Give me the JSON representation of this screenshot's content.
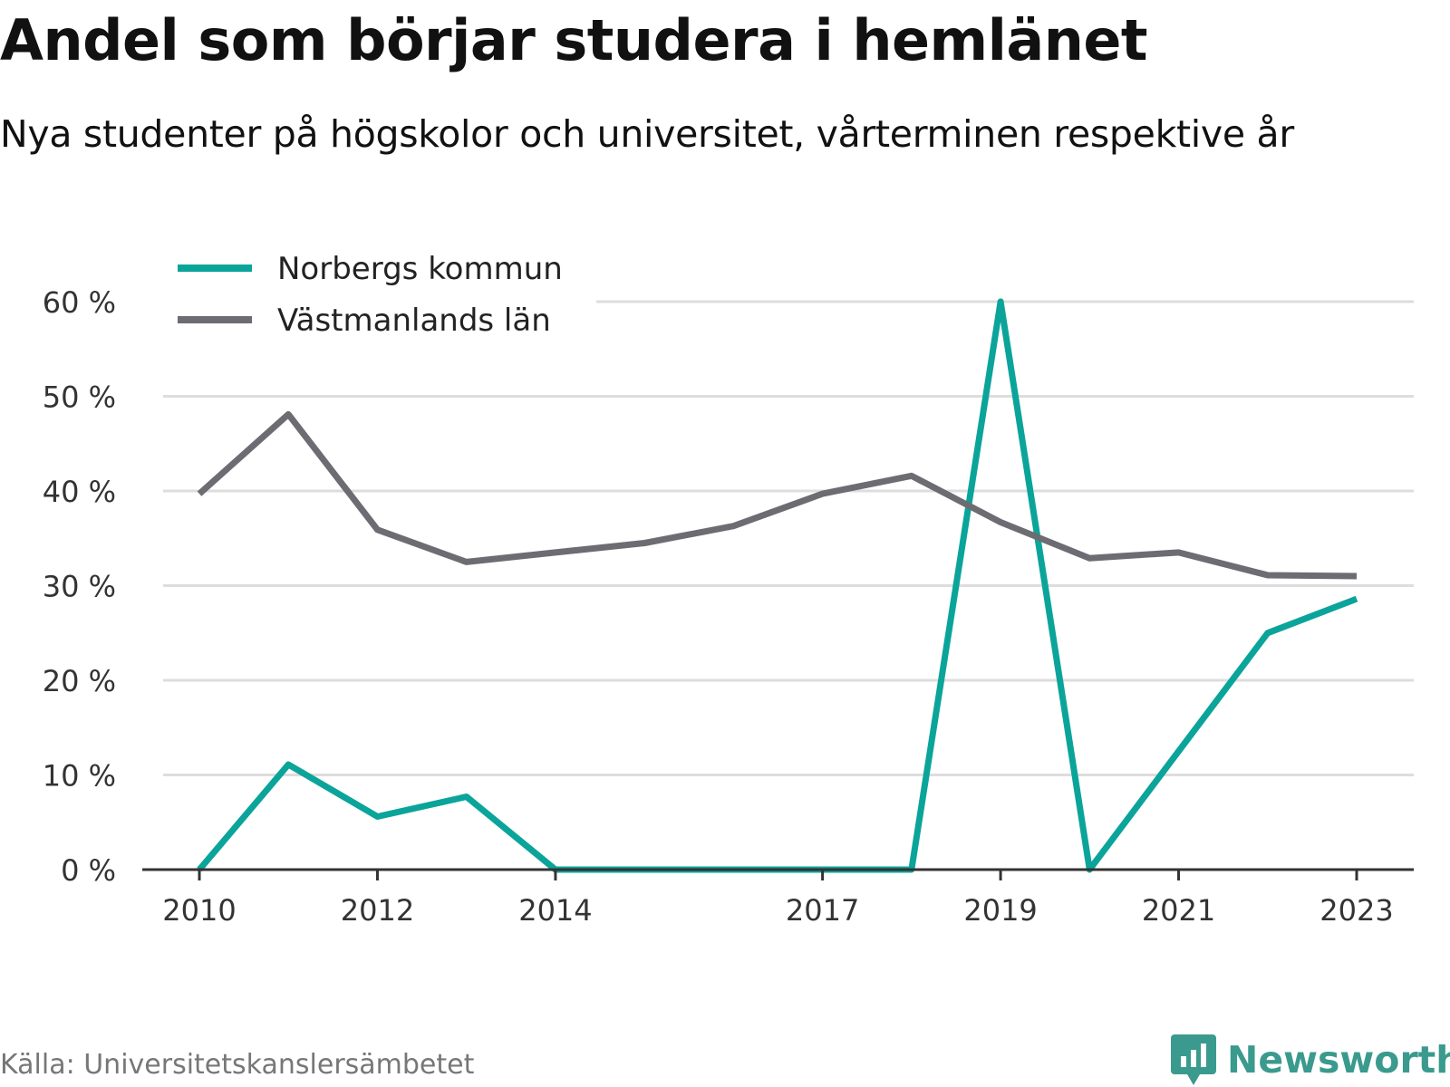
{
  "title": "Andel som börjar studera i hemlänet",
  "subtitle": "Nya studenter på högskolor och universitet, vårterminen respektive år",
  "source": "Källa: Universitetskanslersämbetet",
  "brand": "Newsworthy",
  "colors": {
    "norberg": "#0ba49a",
    "vastmanland": "#6d6c72",
    "grid": "#dddddd",
    "axis": "#333333",
    "brand": "#3a9a8e"
  },
  "chart_data": {
    "type": "line",
    "x": [
      2010,
      2011,
      2012,
      2013,
      2014,
      2015,
      2016,
      2017,
      2018,
      2019,
      2020,
      2021,
      2022,
      2023
    ],
    "series": [
      {
        "name": "Norbergs kommun",
        "color": "#0ba49a",
        "values": [
          0,
          11.1,
          5.6,
          7.7,
          0,
          0,
          0,
          0,
          0,
          60,
          0,
          12.5,
          25,
          28.6
        ]
      },
      {
        "name": "Västmanlands län",
        "color": "#6d6c72",
        "values": [
          39.7,
          48.1,
          35.9,
          32.5,
          33.5,
          34.5,
          36.3,
          39.7,
          41.6,
          36.7,
          32.9,
          33.5,
          31.1,
          31.0
        ]
      }
    ],
    "xticks": [
      "2010",
      "2012",
      "2014",
      "2017",
      "2019",
      "2021",
      "2023"
    ],
    "yticks": [
      "0 %",
      "10 %",
      "20 %",
      "30 %",
      "40 %",
      "50 %",
      "60 %"
    ],
    "ylim": [
      0,
      60
    ],
    "xlabel": "",
    "ylabel": "",
    "grid": true,
    "legend": "top-left"
  }
}
